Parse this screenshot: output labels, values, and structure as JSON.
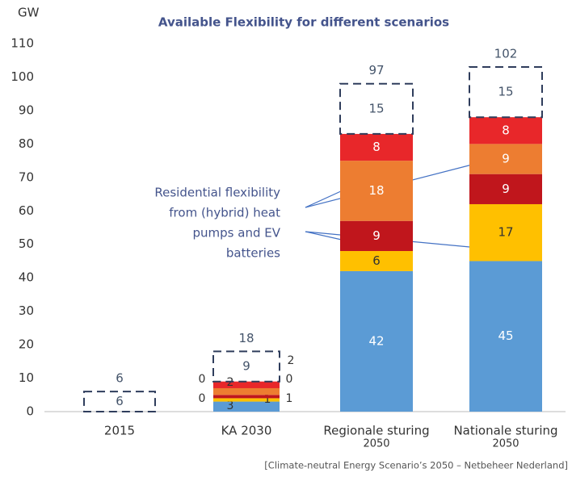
{
  "chart_data": {
    "type": "stacked_bar",
    "title": "Available Flexibility for different scenarios",
    "y_label": "GW",
    "categories": [
      [
        "2015"
      ],
      [
        "KA 2030"
      ],
      [
        "Regionale sturing",
        "2050"
      ],
      [
        "Nationale sturing",
        "2050"
      ]
    ],
    "series": [
      {
        "color": "#5b9bd5",
        "values": [
          null,
          3,
          42,
          45
        ]
      },
      {
        "color": "#ffc000",
        "values": [
          null,
          1,
          6,
          17
        ]
      },
      {
        "color": "#c0161c",
        "values": [
          null,
          1,
          9,
          9
        ]
      },
      {
        "color": "#ed7d31",
        "values": [
          null,
          2,
          18,
          9
        ]
      },
      {
        "color": "#e8272a",
        "values": [
          null,
          2,
          8,
          8
        ]
      },
      {
        "color": "none",
        "dashed": true,
        "values": [
          6,
          9,
          15,
          15
        ]
      }
    ],
    "totals": [
      6,
      18,
      97,
      102
    ],
    "ka_zero_labels": [
      0,
      0,
      0
    ],
    "ylim": [
      0,
      110
    ],
    "yticks": [
      0,
      10,
      20,
      30,
      40,
      50,
      60,
      70,
      80,
      90,
      100,
      110
    ],
    "annotation": [
      "Residential flexibility",
      "from (hybrid) heat",
      "pumps and EV",
      "batteries"
    ],
    "source": "[Climate-neutral Energy Scenario’s 2050 – Netbeheer Nederland]"
  }
}
